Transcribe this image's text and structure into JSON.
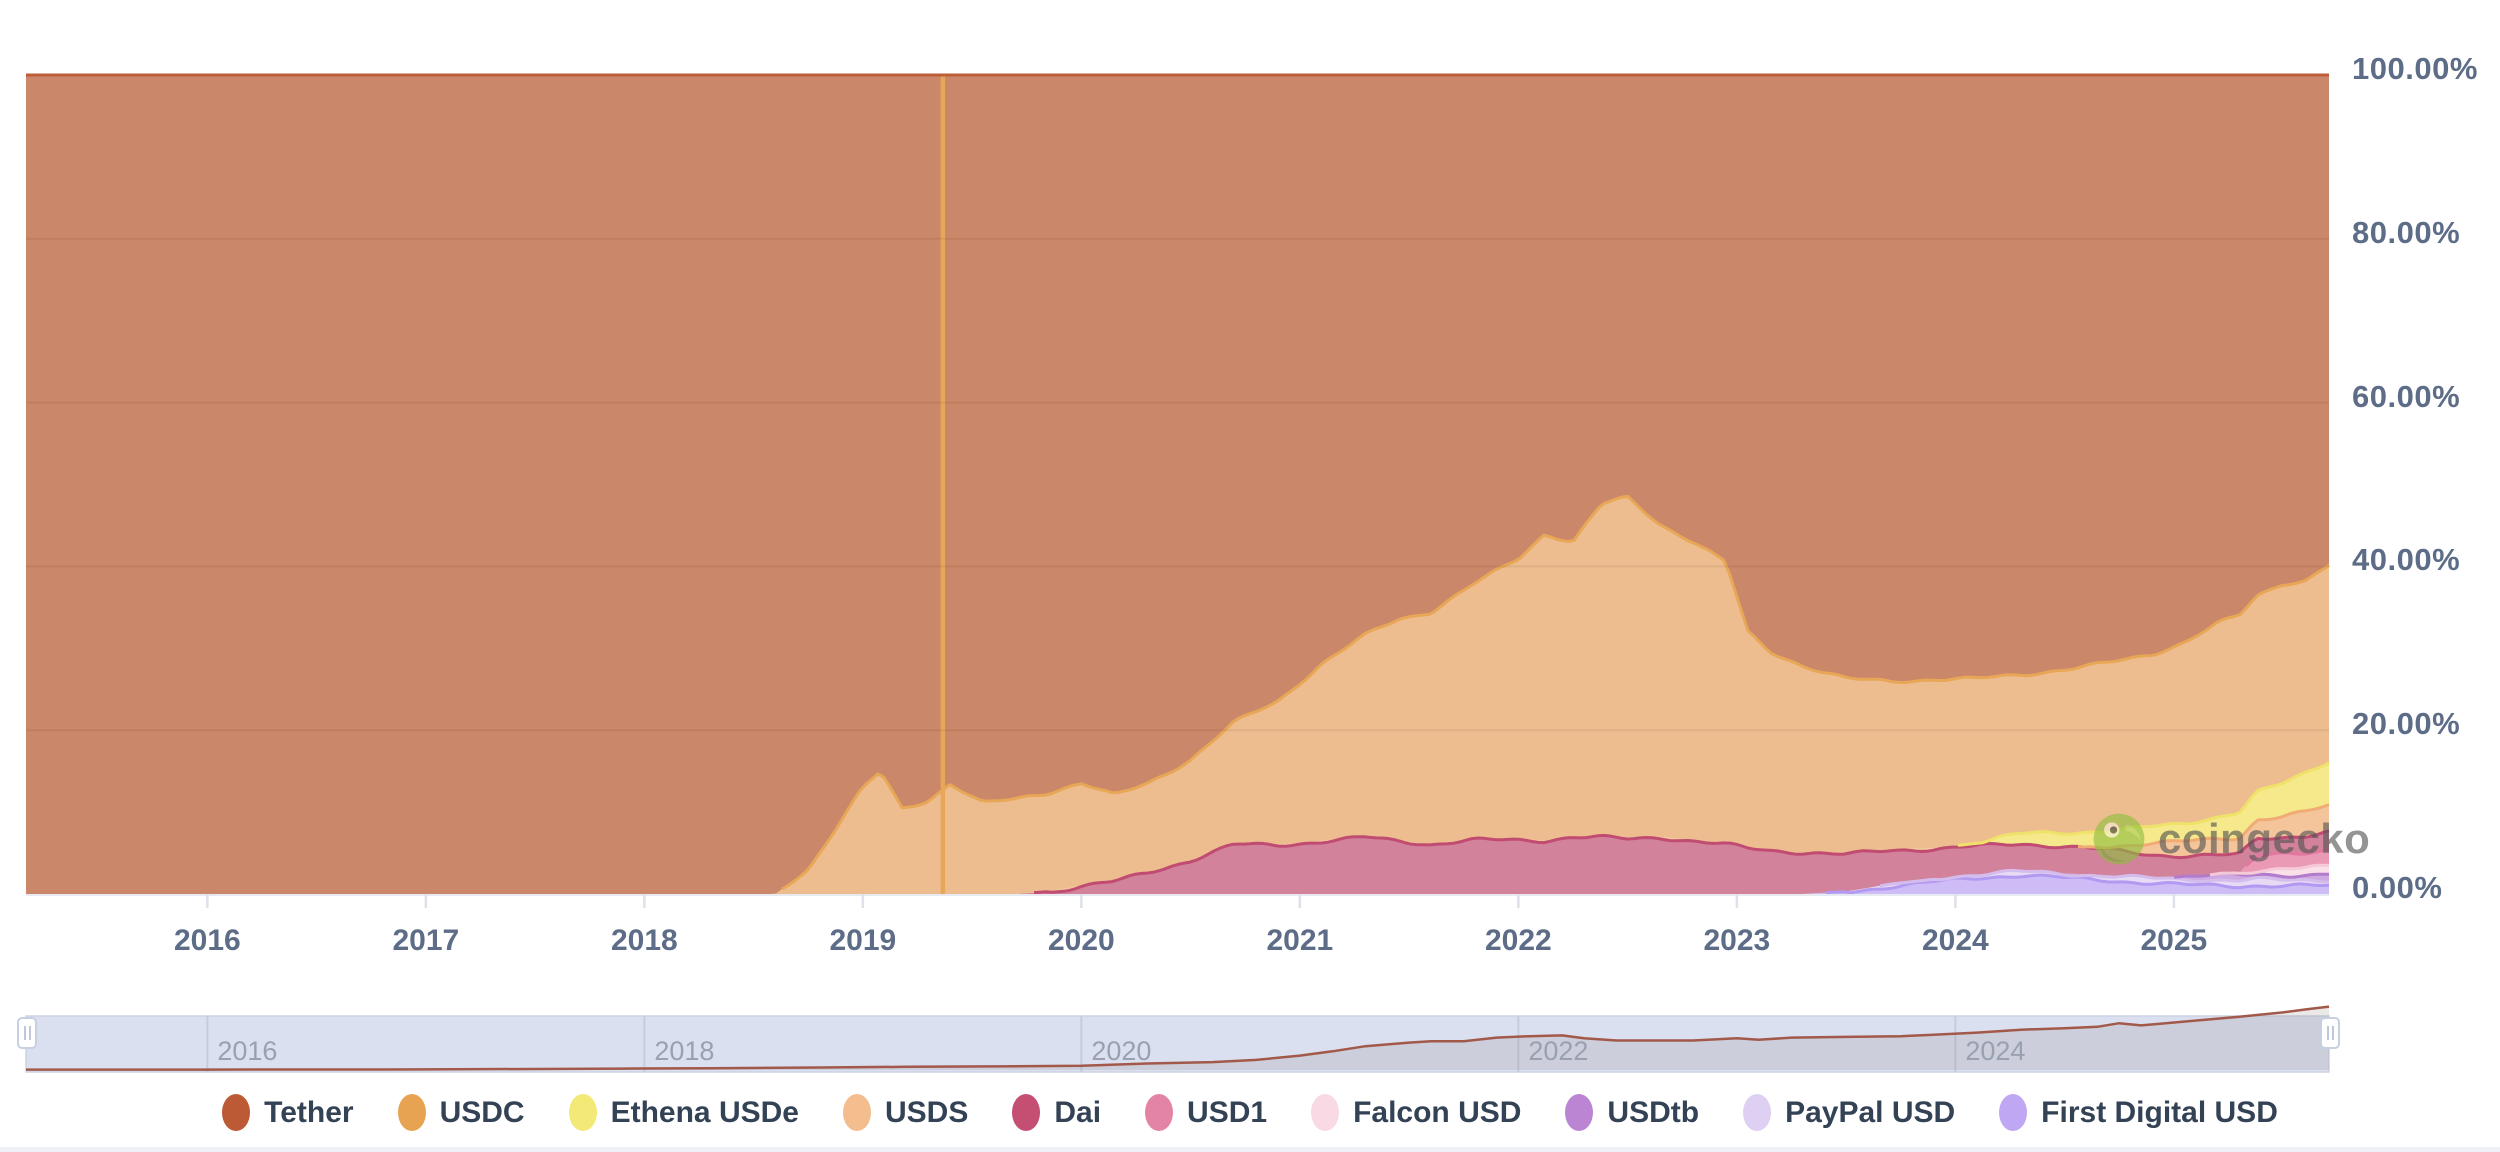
{
  "watermark": {
    "text": "coingecko",
    "icon": "gecko-logo-icon"
  },
  "y_axis": {
    "labels": [
      "100.00%",
      "80.00%",
      "60.00%",
      "40.00%",
      "20.00%",
      "0.00%"
    ],
    "color": "#5d6c87"
  },
  "x_axis": {
    "labels": [
      "2016",
      "2017",
      "2018",
      "2019",
      "2020",
      "2021",
      "2022",
      "2023",
      "2024",
      "2025"
    ],
    "color": "#5d6c87"
  },
  "navigator": {
    "year_labels": [
      "2016",
      "2018",
      "2020",
      "2022",
      "2024"
    ],
    "label_years": [
      2016,
      2018,
      2020,
      2022,
      2024
    ],
    "background": "#dbe0f0",
    "grid_color": "#c5cce0",
    "line_color": "#a2594a",
    "fill_color": "rgba(130,115,115,0.16)",
    "label_color": "#99a1b0",
    "handle_icon": "drag-grip-icon",
    "series": {
      "x": [
        2015.17,
        2016,
        2017,
        2017.9,
        2018.3,
        2018.8,
        2019.2,
        2019.6,
        2020.0,
        2020.3,
        2020.6,
        2020.8,
        2021.0,
        2021.15,
        2021.3,
        2021.5,
        2021.6,
        2021.75,
        2021.9,
        2022.05,
        2022.2,
        2022.3,
        2022.45,
        2022.6,
        2022.8,
        2023.0,
        2023.1,
        2023.25,
        2023.5,
        2023.75,
        2023.9,
        2024.1,
        2024.3,
        2024.5,
        2024.65,
        2024.75,
        2024.85,
        2025.0,
        2025.15,
        2025.3,
        2025.5,
        2025.6,
        2025.71
      ],
      "v": [
        0.005,
        0.005,
        0.008,
        0.02,
        0.025,
        0.035,
        0.045,
        0.05,
        0.06,
        0.09,
        0.11,
        0.14,
        0.2,
        0.26,
        0.33,
        0.38,
        0.4,
        0.4,
        0.45,
        0.47,
        0.48,
        0.44,
        0.41,
        0.41,
        0.41,
        0.44,
        0.42,
        0.45,
        0.46,
        0.47,
        0.49,
        0.52,
        0.56,
        0.58,
        0.6,
        0.65,
        0.62,
        0.66,
        0.7,
        0.74,
        0.8,
        0.84,
        0.88
      ]
    }
  },
  "legend": {
    "items": [
      {
        "label": "Tether",
        "color": "#bb5a35"
      },
      {
        "label": "USDC",
        "color": "#e7a352"
      },
      {
        "label": "Ethena USDe",
        "color": "#f3e976"
      },
      {
        "label": "USDS",
        "color": "#f4bd8d"
      },
      {
        "label": "Dai",
        "color": "#c54e73"
      },
      {
        "label": "USD1",
        "color": "#e383a6"
      },
      {
        "label": "Falcon USD",
        "color": "#f8d9e4"
      },
      {
        "label": "USDtb",
        "color": "#bb85d4"
      },
      {
        "label": "PayPal USD",
        "color": "#ded0f2"
      },
      {
        "label": "First Digital USD",
        "color": "#c0a7f3"
      }
    ]
  },
  "chart_data": {
    "type": "area",
    "stacked": true,
    "unit": "%",
    "x_domain": [
      2015.17,
      2025.71
    ],
    "ylim": [
      0,
      100
    ],
    "y_gridlines_pct": [
      20,
      40,
      60,
      80
    ],
    "grid_overlay_color": "rgba(80,40,20,0.09)",
    "data_gap_spike": {
      "year": 2019.365,
      "color": "#e8a65a"
    },
    "x": [
      2015.17,
      2016,
      2017,
      2018,
      2018.6,
      2018.75,
      2018.9,
      2019.0,
      2019.08,
      2019.18,
      2019.3,
      2019.4,
      2019.55,
      2019.7,
      2019.85,
      2020.0,
      2020.15,
      2020.3,
      2020.5,
      2020.7,
      2020.9,
      2021.1,
      2021.3,
      2021.45,
      2021.6,
      2021.8,
      2022.0,
      2022.12,
      2022.25,
      2022.38,
      2022.5,
      2022.65,
      2022.8,
      2022.95,
      2023.05,
      2023.15,
      2023.3,
      2023.5,
      2023.7,
      2023.9,
      2024.1,
      2024.3,
      2024.5,
      2024.7,
      2024.9,
      2025.05,
      2025.2,
      2025.3,
      2025.38,
      2025.5,
      2025.6,
      2025.71
    ],
    "series": [
      {
        "name": "Tether",
        "fill": "#cb8769",
        "stroke": "#bc5e39",
        "mode": "remainder_to_100",
        "values": []
      },
      {
        "name": "USDC",
        "fill": "#edbd8f",
        "stroke": "#e8a757",
        "values": [
          0,
          0,
          0,
          0,
          0,
          3,
          9,
          13,
          15,
          10.5,
          11.5,
          13.5,
          11,
          11.5,
          12,
          12.5,
          10.5,
          11,
          12.5,
          15,
          17.5,
          21.5,
          24.5,
          27,
          28.5,
          31.5,
          34.5,
          37.5,
          36,
          40.5,
          41.5,
          38,
          36.5,
          34.5,
          26.5,
          24.5,
          23,
          21.5,
          20.5,
          20.5,
          20,
          19.5,
          20,
          20.5,
          21,
          22,
          23.5,
          24,
          24,
          24.5,
          23.5,
          24
        ]
      },
      {
        "name": "Ethena USDe",
        "fill": "#f5e98b",
        "stroke": "#efe26a",
        "values": [
          0,
          0,
          0,
          0,
          0,
          0,
          0,
          0,
          0,
          0,
          0,
          0,
          0,
          0,
          0,
          0,
          0,
          0,
          0,
          0,
          0,
          0,
          0,
          0,
          0,
          0,
          0,
          0,
          0,
          0,
          0,
          0,
          0,
          0,
          0,
          0,
          0,
          0,
          0,
          0,
          0.3,
          1.2,
          1.8,
          2,
          2,
          2.2,
          2.6,
          3,
          3.2,
          4,
          4.8,
          5.5
        ]
      },
      {
        "name": "USDS",
        "fill": "#f4c59a",
        "stroke": "#f0ac74",
        "values": [
          0,
          0,
          0,
          0,
          0,
          0,
          0,
          0,
          0,
          0,
          0,
          0,
          0,
          0,
          0,
          0,
          0,
          0,
          0,
          0,
          0,
          0,
          0,
          0,
          0,
          0,
          0,
          0,
          0,
          0,
          0,
          0,
          0,
          0,
          0,
          0,
          0,
          0,
          0,
          0,
          0,
          0,
          0,
          0.5,
          1.5,
          1.8,
          2,
          2,
          2.2,
          2.4,
          2.8,
          3.2
        ]
      },
      {
        "name": "Dai",
        "fill": "#d2829b",
        "stroke": "#c04c72",
        "values": [
          0,
          0,
          0,
          0,
          0,
          0,
          0,
          0,
          0,
          0,
          0,
          0,
          0,
          0,
          0.3,
          1,
          1.5,
          2.5,
          4,
          6,
          6,
          6.5,
          7,
          6.5,
          6,
          6.5,
          6.5,
          6.5,
          7,
          7,
          6.8,
          7,
          6.5,
          6,
          5.5,
          5.2,
          5,
          4.5,
          4.2,
          3.8,
          3.6,
          3.4,
          3.2,
          3,
          2.8,
          2.6,
          2.4,
          2.3,
          2.2,
          2.1,
          2,
          2
        ]
      },
      {
        "name": "USD1",
        "fill": "#ea9ab5",
        "stroke": "#e2779f",
        "values": [
          0,
          0,
          0,
          0,
          0,
          0,
          0,
          0,
          0,
          0,
          0,
          0,
          0,
          0,
          0,
          0,
          0,
          0,
          0,
          0,
          0,
          0,
          0,
          0,
          0,
          0,
          0,
          0,
          0,
          0,
          0,
          0,
          0,
          0,
          0,
          0,
          0,
          0,
          0,
          0,
          0,
          0,
          0,
          0,
          0,
          0,
          0,
          0,
          1.8,
          1.8,
          1.9,
          2
        ]
      },
      {
        "name": "Falcon USD",
        "fill": "#f9e0e9",
        "stroke": "#f5c9d7",
        "values": [
          0,
          0,
          0,
          0,
          0,
          0,
          0,
          0,
          0,
          0,
          0,
          0,
          0,
          0,
          0,
          0,
          0,
          0,
          0,
          0,
          0,
          0,
          0,
          0,
          0,
          0,
          0,
          0,
          0,
          0,
          0,
          0,
          0,
          0,
          0,
          0,
          0,
          0,
          0,
          0,
          0,
          0,
          0,
          0,
          0,
          0,
          0.2,
          0.4,
          0.6,
          0.8,
          0.9,
          1
        ]
      },
      {
        "name": "USDtb",
        "fill": "#cfa9e2",
        "stroke": "#b27ccc",
        "values": [
          0,
          0,
          0,
          0,
          0,
          0,
          0,
          0,
          0,
          0,
          0,
          0,
          0,
          0,
          0,
          0,
          0,
          0,
          0,
          0,
          0,
          0,
          0,
          0,
          0,
          0,
          0,
          0,
          0,
          0,
          0,
          0,
          0,
          0,
          0,
          0,
          0,
          0,
          0,
          0,
          0,
          0,
          0,
          0,
          0,
          0.3,
          0.5,
          0.6,
          0.6,
          0.7,
          0.7,
          0.8
        ]
      },
      {
        "name": "PayPal USD",
        "fill": "#e7daf5",
        "stroke": "#d4bcec",
        "values": [
          0,
          0,
          0,
          0,
          0,
          0,
          0,
          0,
          0,
          0,
          0,
          0,
          0,
          0,
          0,
          0,
          0,
          0,
          0,
          0,
          0,
          0,
          0,
          0,
          0,
          0,
          0,
          0,
          0,
          0,
          0,
          0,
          0,
          0,
          0,
          0,
          0,
          0,
          0.2,
          0.3,
          0.4,
          0.5,
          0.6,
          0.6,
          0.6,
          0.6,
          0.6,
          0.6,
          0.7,
          0.7,
          0.7,
          0.8
        ]
      },
      {
        "name": "First Digital USD",
        "fill": "#cdbcf6",
        "stroke": "#b299f1",
        "values": [
          0,
          0,
          0,
          0,
          0,
          0,
          0,
          0,
          0,
          0,
          0,
          0,
          0,
          0,
          0,
          0,
          0,
          0,
          0,
          0,
          0,
          0,
          0,
          0,
          0,
          0,
          0,
          0,
          0,
          0,
          0,
          0,
          0,
          0,
          0,
          0,
          0,
          0.3,
          1,
          1.5,
          1.9,
          2.2,
          1.9,
          1.7,
          1.4,
          1.2,
          1.1,
          1,
          1,
          0.9,
          0.9,
          0.9
        ]
      }
    ]
  }
}
